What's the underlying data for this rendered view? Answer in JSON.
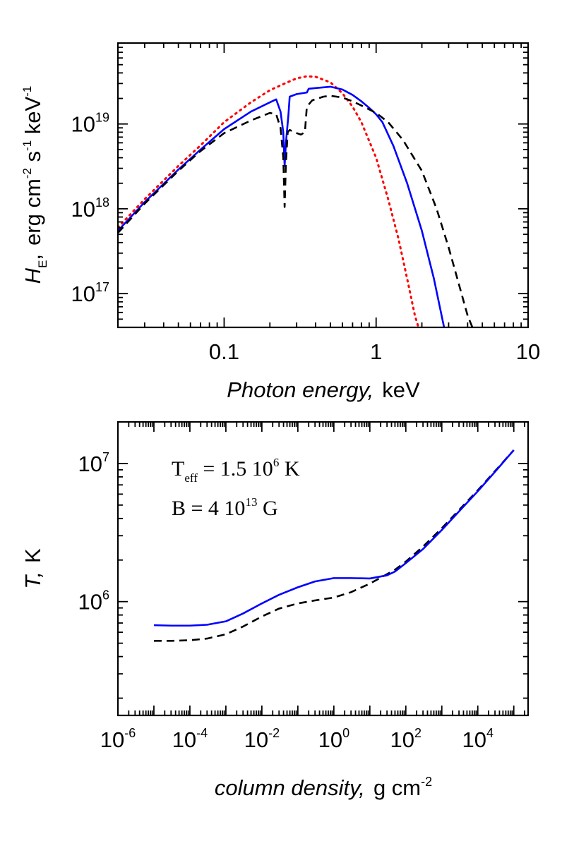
{
  "chart_data": [
    {
      "id": "spectrum",
      "type": "line",
      "xscale": "log",
      "yscale": "log",
      "xlim": [
        0.02,
        10
      ],
      "ylim": [
        4e+16,
        9e+19
      ],
      "xlabel_italic": "Photon energy,",
      "xlabel_unit": "keV",
      "ylabel_symbol": "H",
      "ylabel_subscript": "E",
      "ylabel_unit_parts": [
        "erg cm",
        "-2",
        " s",
        "-1",
        " keV",
        "-1"
      ],
      "xticks": [
        {
          "value": 0.1,
          "label": "0.1"
        },
        {
          "value": 1,
          "label": "1"
        },
        {
          "value": 10,
          "label": "10"
        }
      ],
      "yticks": [
        {
          "value": 1e+17,
          "mantissa": "10",
          "exp": "17"
        },
        {
          "value": 1e+18,
          "mantissa": "10",
          "exp": "18"
        },
        {
          "value": 1e+19,
          "mantissa": "10",
          "exp": "19"
        }
      ],
      "series": [
        {
          "name": "blackbody",
          "color": "#ff0000",
          "style": "dotted",
          "x": [
            0.02,
            0.03,
            0.05,
            0.07,
            0.1,
            0.15,
            0.2,
            0.25,
            0.3,
            0.35,
            0.4,
            0.5,
            0.6,
            0.7,
            0.8,
            1.0,
            1.2,
            1.4,
            1.6,
            1.8,
            1.9
          ],
          "y": [
            6e+17,
            1.3e+18,
            3.2e+18,
            5.6e+18,
            1.05e+19,
            1.8e+19,
            2.5e+19,
            3e+19,
            3.45e+19,
            3.65e+19,
            3.6e+19,
            3.1e+19,
            2.3e+19,
            1.6e+19,
            1.05e+19,
            4e+18,
            1.3e+18,
            4.5e+17,
            1.5e+17,
            5.5e+16,
            4e+16
          ]
        },
        {
          "name": "model-blue",
          "color": "#0000ff",
          "style": "solid",
          "x": [
            0.02,
            0.03,
            0.05,
            0.07,
            0.1,
            0.15,
            0.2,
            0.22,
            0.235,
            0.245,
            0.25,
            0.255,
            0.265,
            0.27,
            0.3,
            0.35,
            0.36,
            0.4,
            0.5,
            0.6,
            0.7,
            0.8,
            0.9,
            1.0,
            1.1,
            1.3,
            1.6,
            2.0,
            2.4,
            2.8
          ],
          "y": [
            5.5e+17,
            1.2e+18,
            2.9e+18,
            5e+18,
            8.7e+18,
            1.4e+19,
            1.8e+19,
            1.95e+19,
            1.4e+19,
            8e+18,
            3.2e+18,
            6e+18,
            1.3e+19,
            2.1e+19,
            2.25e+19,
            2.35e+19,
            2.6e+19,
            2.65e+19,
            2.75e+19,
            2.55e+19,
            2.2e+19,
            1.85e+19,
            1.55e+19,
            1.3e+19,
            1.05e+19,
            5.5e+18,
            2e+18,
            5.5e+17,
            1.5e+17,
            4e+16
          ]
        },
        {
          "name": "model-black",
          "color": "#000000",
          "style": "dashed",
          "x": [
            0.02,
            0.03,
            0.05,
            0.07,
            0.1,
            0.15,
            0.2,
            0.22,
            0.235,
            0.245,
            0.25,
            0.255,
            0.262,
            0.27,
            0.29,
            0.3,
            0.32,
            0.34,
            0.35,
            0.38,
            0.45,
            0.5,
            0.6,
            0.7,
            0.8,
            1.0,
            1.2,
            1.5,
            2.0,
            2.5,
            3.0,
            3.5,
            4.0,
            4.3
          ],
          "y": [
            5.2e+17,
            1.15e+18,
            2.8e+18,
            4.8e+18,
            7.8e+18,
            1.1e+19,
            1.35e+19,
            1.3e+19,
            9e+18,
            4e+18,
            1.05e+18,
            3.5e+18,
            8e+18,
            8.5e+18,
            8e+18,
            7.8e+18,
            7.5e+18,
            8e+18,
            1.6e+19,
            1.9e+19,
            2.1e+19,
            2.15e+19,
            2.05e+19,
            1.85e+19,
            1.65e+19,
            1.35e+19,
            1.05e+19,
            6.5e+18,
            2.8e+18,
            1e+18,
            3.5e+17,
            1.3e+17,
            5.5e+16,
            4e+16
          ]
        }
      ]
    },
    {
      "id": "temperature",
      "type": "line",
      "xscale": "log",
      "yscale": "log",
      "xlim": [
        1e-06,
        250000.0
      ],
      "ylim": [
        150000.0,
        20000000.0
      ],
      "xlabel_italic": "column density,",
      "xlabel_unit": "g cm",
      "xlabel_unit_exp": "-2",
      "ylabel_italic": "T,",
      "ylabel_unit": "K",
      "annotation": {
        "line1_main": "T",
        "line1_sub": "eff",
        "line1_value": " = 1.5 10",
        "line1_exp": "6",
        "line1_unit": " K",
        "line2_value": "B = 4 10",
        "line2_exp": "13",
        "line2_unit": " G"
      },
      "xticks": [
        {
          "value": 1e-06,
          "mantissa": "10",
          "exp": "-6"
        },
        {
          "value": 0.0001,
          "mantissa": "10",
          "exp": "-4"
        },
        {
          "value": 0.01,
          "mantissa": "10",
          "exp": "-2"
        },
        {
          "value": 1,
          "mantissa": "10",
          "exp": "0"
        },
        {
          "value": 100,
          "mantissa": "10",
          "exp": "2"
        },
        {
          "value": 10000.0,
          "mantissa": "10",
          "exp": "4"
        }
      ],
      "yticks": [
        {
          "value": 1000000.0,
          "mantissa": "10",
          "exp": "6"
        },
        {
          "value": 10000000.0,
          "mantissa": "10",
          "exp": "7"
        }
      ],
      "series": [
        {
          "name": "T-profile-dashed",
          "color": "#000000",
          "style": "dashed",
          "x": [
            1e-05,
            3e-05,
            0.0001,
            0.0003,
            0.001,
            0.003,
            0.01,
            0.03,
            0.1,
            0.3,
            1,
            3,
            10,
            30,
            50,
            100,
            300,
            1000,
            3000,
            10000.0,
            30000.0,
            100000.0
          ],
          "y": [
            520000.0,
            520000.0,
            525000.0,
            540000.0,
            580000.0,
            660000.0,
            780000.0,
            890000.0,
            970000.0,
            1020000.0,
            1070000.0,
            1170000.0,
            1350000.0,
            1580000.0,
            1700000.0,
            1950000.0,
            2500000.0,
            3400000.0,
            4600000.0,
            6400000.0,
            8800000.0,
            12500000.0
          ]
        },
        {
          "name": "T-profile-solid",
          "color": "#0000ff",
          "style": "solid",
          "x": [
            1e-05,
            3e-05,
            0.0001,
            0.0003,
            0.001,
            0.003,
            0.01,
            0.03,
            0.1,
            0.3,
            1,
            3,
            10,
            30,
            50,
            100,
            300,
            1000,
            3000,
            10000.0,
            30000.0,
            100000.0
          ],
          "y": [
            675000.0,
            670000.0,
            670000.0,
            680000.0,
            720000.0,
            820000.0,
            970000.0,
            1120000.0,
            1270000.0,
            1400000.0,
            1480000.0,
            1480000.0,
            1470000.0,
            1550000.0,
            1650000.0,
            1900000.0,
            2400000.0,
            3300000.0,
            4500000.0,
            6300000.0,
            8700000.0,
            12500000.0
          ]
        }
      ]
    }
  ]
}
